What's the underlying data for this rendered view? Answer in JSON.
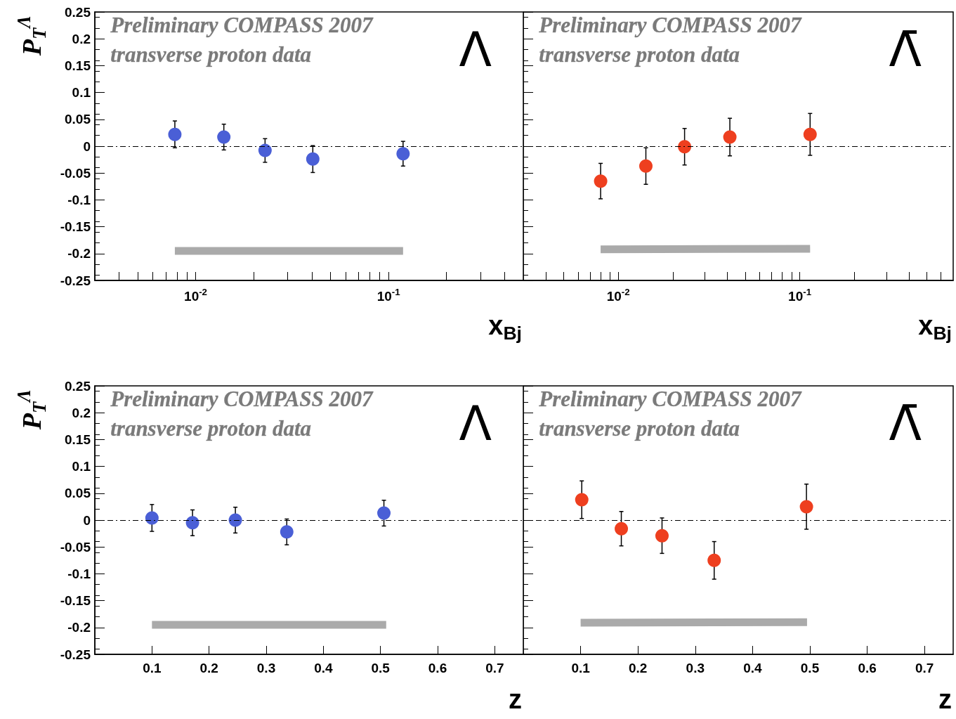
{
  "chart_data": [
    {
      "type": "scatter",
      "xlabel": "x$_{Bj}$",
      "ylabel": "P$_{T}$$^{Λ}$",
      "log": "x",
      "marker": "circle",
      "grid": false,
      "xlim": [
        0.003,
        0.5
      ],
      "xticks": [
        {
          "value": 0.004,
          "label": null
        },
        {
          "value": 0.005,
          "label": null
        },
        {
          "value": 0.006,
          "label": null
        },
        {
          "value": 0.007,
          "label": null
        },
        {
          "value": 0.008,
          "label": null
        },
        {
          "value": 0.009,
          "label": null
        },
        {
          "value": 0.01,
          "label": "10$^{-2}$"
        },
        {
          "value": 0.02,
          "label": null
        },
        {
          "value": 0.03,
          "label": null
        },
        {
          "value": 0.04,
          "label": null
        },
        {
          "value": 0.05,
          "label": null
        },
        {
          "value": 0.06,
          "label": null
        },
        {
          "value": 0.07,
          "label": null
        },
        {
          "value": 0.08,
          "label": null
        },
        {
          "value": 0.09,
          "label": null
        },
        {
          "value": 0.1,
          "label": "10$^{-1}$"
        },
        {
          "value": 0.2,
          "label": null
        },
        {
          "value": 0.3,
          "label": null
        },
        {
          "value": 0.4,
          "label": null
        }
      ],
      "ylim": [
        -0.25,
        0.25
      ],
      "yticks": [
        -0.25,
        -0.2,
        -0.15,
        -0.1,
        -0.05,
        0,
        0.05,
        0.1,
        0.15,
        0.2,
        0.25
      ],
      "series": [
        {
          "color": "#4a5fd6",
          "x": [
            0.0078,
            0.014,
            0.0229,
            0.0405,
            0.119
          ],
          "values": [
            0.022,
            0.017,
            -0.008,
            -0.024,
            -0.014
          ],
          "errors": [
            0.025,
            0.024,
            0.022,
            0.025,
            0.023
          ]
        },
        {
          "type": "line",
          "marker": "none",
          "color": "#aaaaaa",
          "x": [
            0.0078,
            0.119
          ],
          "values": [
            -0.195,
            -0.195
          ]
        }
      ],
      "ref_lines": [
        {
          "axis": "y",
          "value": 0,
          "line_style": "dashed"
        }
      ],
      "annotations": [
        "Preliminary COMPASS 2007",
        "transverse proton data",
        "Λ"
      ]
    },
    {
      "type": "scatter",
      "xlabel": "x$_{Bj}$",
      "log": "x",
      "marker": "circle",
      "grid": false,
      "tick_labels": "x",
      "xlim": [
        0.003,
        0.7
      ],
      "xticks": [
        {
          "value": 0.004,
          "label": null
        },
        {
          "value": 0.005,
          "label": null
        },
        {
          "value": 0.006,
          "label": null
        },
        {
          "value": 0.007,
          "label": null
        },
        {
          "value": 0.008,
          "label": null
        },
        {
          "value": 0.009,
          "label": null
        },
        {
          "value": 0.01,
          "label": "10$^{-2}$"
        },
        {
          "value": 0.02,
          "label": null
        },
        {
          "value": 0.03,
          "label": null
        },
        {
          "value": 0.04,
          "label": null
        },
        {
          "value": 0.05,
          "label": null
        },
        {
          "value": 0.06,
          "label": null
        },
        {
          "value": 0.07,
          "label": null
        },
        {
          "value": 0.08,
          "label": null
        },
        {
          "value": 0.09,
          "label": null
        },
        {
          "value": 0.1,
          "label": "10$^{-1}$"
        },
        {
          "value": 0.2,
          "label": null
        },
        {
          "value": 0.3,
          "label": null
        },
        {
          "value": 0.4,
          "label": null
        },
        {
          "value": 0.5,
          "label": null
        },
        {
          "value": 0.6,
          "label": null
        }
      ],
      "ylim": [
        -0.25,
        0.25
      ],
      "yticks": [
        -0.25,
        -0.2,
        -0.15,
        -0.1,
        -0.05,
        0,
        0.05,
        0.1,
        0.15,
        0.2,
        0.25
      ],
      "series": [
        {
          "color": "#ee3f1f",
          "x": [
            0.008,
            0.0142,
            0.0232,
            0.0412,
            0.114
          ],
          "values": [
            -0.065,
            -0.037,
            -0.001,
            0.017,
            0.022
          ],
          "errors": [
            0.033,
            0.034,
            0.034,
            0.035,
            0.039
          ]
        },
        {
          "type": "line",
          "marker": "none",
          "color": "#aaaaaa",
          "x": [
            0.008,
            0.114
          ],
          "values": [
            -0.192,
            -0.191
          ]
        }
      ],
      "ref_lines": [
        {
          "axis": "y",
          "value": 0,
          "line_style": "dashed"
        }
      ],
      "annotations": [
        "Preliminary COMPASS 2007",
        "transverse proton data",
        "Λ̄"
      ]
    },
    {
      "type": "scatter",
      "xlabel": "z",
      "ylabel": "P$_{T}$$^{Λ}$",
      "marker": "circle",
      "grid": false,
      "xlim": [
        0,
        0.75
      ],
      "xticks": [
        0.1,
        0.2,
        0.3,
        0.4,
        0.5,
        0.6,
        0.7
      ],
      "ylim": [
        -0.25,
        0.25
      ],
      "yticks": [
        -0.25,
        -0.2,
        -0.15,
        -0.1,
        -0.05,
        0,
        0.05,
        0.1,
        0.15,
        0.2,
        0.25
      ],
      "series": [
        {
          "color": "#4a5fd6",
          "x": [
            0.1,
            0.171,
            0.246,
            0.336,
            0.506
          ],
          "values": [
            0.004,
            -0.005,
            0,
            -0.022,
            0.013
          ],
          "errors": [
            0.025,
            0.024,
            0.024,
            0.024,
            0.024
          ]
        },
        {
          "type": "line",
          "marker": "none",
          "color": "#aaaaaa",
          "x": [
            0.1,
            0.51
          ],
          "values": [
            -0.195,
            -0.195
          ]
        }
      ],
      "ref_lines": [
        {
          "axis": "y",
          "value": 0,
          "line_style": "dashed"
        }
      ],
      "annotations": [
        "Preliminary COMPASS 2007",
        "transverse proton data",
        "Λ"
      ]
    },
    {
      "type": "scatter",
      "xlabel": "z",
      "marker": "circle",
      "grid": false,
      "tick_labels": "x",
      "xlim": [
        0,
        0.75
      ],
      "xticks": [
        0.1,
        0.2,
        0.3,
        0.4,
        0.5,
        0.6,
        0.7
      ],
      "ylim": [
        -0.25,
        0.25
      ],
      "yticks": [
        -0.25,
        -0.2,
        -0.15,
        -0.1,
        -0.05,
        0,
        0.05,
        0.1,
        0.15,
        0.2,
        0.25
      ],
      "series": [
        {
          "color": "#ee3f1f",
          "x": [
            0.102,
            0.171,
            0.242,
            0.333,
            0.494
          ],
          "values": [
            0.038,
            -0.016,
            -0.029,
            -0.075,
            0.025
          ],
          "errors": [
            0.035,
            0.032,
            0.033,
            0.035,
            0.042
          ]
        },
        {
          "type": "line",
          "marker": "none",
          "color": "#aaaaaa",
          "x": [
            0.1,
            0.495
          ],
          "values": [
            -0.191,
            -0.19
          ]
        }
      ],
      "ref_lines": [
        {
          "axis": "y",
          "value": 0,
          "line_style": "dashed"
        }
      ],
      "annotations": [
        "Preliminary COMPASS 2007",
        "transverse proton data",
        "Λ̄"
      ]
    }
  ]
}
